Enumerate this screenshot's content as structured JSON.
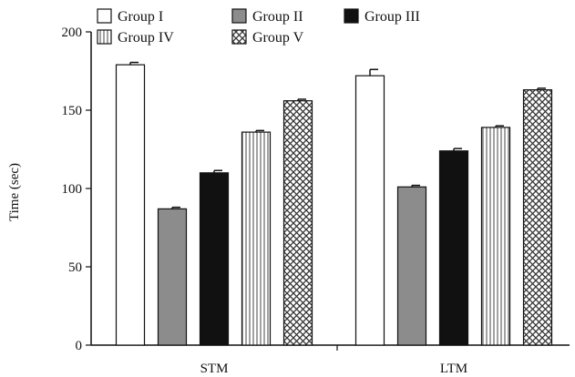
{
  "chart_data": {
    "type": "bar",
    "title": "",
    "xlabel": "",
    "ylabel": "Time (sec)",
    "ylim": [
      0,
      200
    ],
    "yticks": [
      0,
      50,
      100,
      150,
      200
    ],
    "grid": false,
    "legend_position": "top",
    "categories": [
      "STM",
      "LTM"
    ],
    "series": [
      {
        "name": "Group I",
        "values": [
          179,
          172
        ],
        "errors": [
          1.5,
          4
        ],
        "fill": "#ffffff",
        "pattern": "none"
      },
      {
        "name": "Group II",
        "values": [
          87,
          101
        ],
        "errors": [
          1,
          1
        ],
        "fill": "#8c8c8c",
        "pattern": "none"
      },
      {
        "name": "Group III",
        "values": [
          110,
          124
        ],
        "errors": [
          1.5,
          1.5
        ],
        "fill": "#111111",
        "pattern": "none"
      },
      {
        "name": "Group IV",
        "values": [
          136,
          139
        ],
        "errors": [
          1,
          1
        ],
        "fill": "#ffffff",
        "pattern": "vertical-lines"
      },
      {
        "name": "Group V",
        "values": [
          156,
          163
        ],
        "errors": [
          1,
          1
        ],
        "fill": "#ffffff",
        "pattern": "crosshatch"
      }
    ]
  }
}
